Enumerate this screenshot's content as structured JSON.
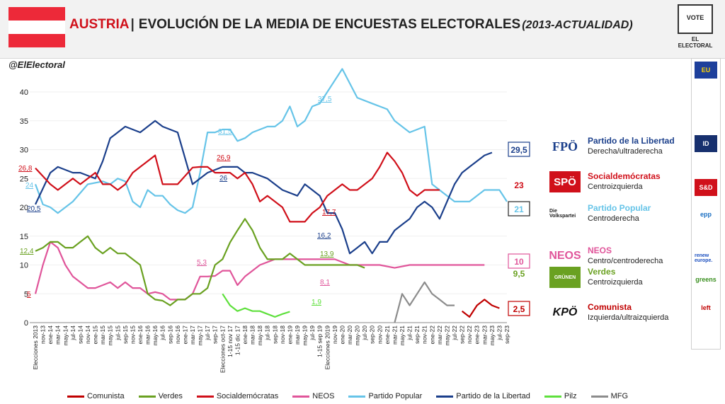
{
  "header": {
    "country": "AUSTRIA",
    "separator": "|",
    "title": "EVOLUCIÓN DE LA MEDIA DE ENCUESTAS ELECTORALES",
    "title_extra": "(2013-ACTUALIDAD)",
    "flag_colors": [
      "#ed2939",
      "#ffffff",
      "#ed2939"
    ],
    "logo_text": "VOTE",
    "logo_label": "EL ELECTORAL"
  },
  "handle": "@ElElectoral",
  "colors": {
    "Comunista": "#c00000",
    "Verdes": "#6aa121",
    "Socialdemocratas": "#d0101a",
    "NEOS": "#e0559a",
    "Partido Popular": "#66c4e8",
    "Partido de la Libertad": "#1b3f8b",
    "Pilz": "#5ee03c",
    "MFG": "#8c8c8c"
  },
  "chart_data": {
    "type": "line",
    "ylim": [
      0,
      42
    ],
    "yticks": [
      0,
      5,
      10,
      15,
      20,
      25,
      30,
      35,
      40
    ],
    "xlabels": [
      "Elecciones 2013",
      "nov-13",
      "ene-14",
      "mar-14",
      "may-14",
      "jul-14",
      "sep-14",
      "nov-14",
      "ene-15",
      "mar-15",
      "may-15",
      "jul-15",
      "sep-15",
      "nov-15",
      "ene-16",
      "mar-16",
      "may-16",
      "jul-16",
      "sep-16",
      "nov-16",
      "ene-17",
      "mar-17",
      "may-17",
      "jul-17",
      "sep-17",
      "Elecciones oct-17",
      "1-15 nov 17",
      "1-15 dic 17",
      "ene-18",
      "mar-18",
      "may-18",
      "jul-18",
      "sep-18",
      "nov-18",
      "ene-19",
      "mar-19",
      "may-19",
      "jul-19",
      "1-15 sep 19",
      "Elecciones 2019",
      "nov-19",
      "ene-20",
      "mar-20",
      "may-20",
      "jul-20",
      "sep-20",
      "nov-20",
      "ene-21",
      "mar-21",
      "may-21",
      "jul-21",
      "sep-21",
      "nov-21",
      "ene-22",
      "mar-22",
      "may-22",
      "jul-22",
      "sep-22",
      "nov-22",
      "ene-23",
      "mar-23",
      "may-23",
      "jul-23",
      "sep-23"
    ],
    "series": [
      {
        "name": "Partido Popular",
        "values": [
          24,
          20.5,
          20,
          19,
          21,
          24,
          24.5,
          24,
          25,
          24.5,
          21,
          20,
          23,
          22,
          22,
          20.5,
          19.5,
          19,
          20,
          26,
          33,
          33,
          33.5,
          33.5,
          31.5,
          32,
          33,
          34,
          34,
          35,
          37.5,
          34,
          35,
          37.5,
          38,
          44,
          39,
          38,
          37,
          35,
          33,
          34,
          24,
          22,
          21,
          21,
          21,
          23,
          23,
          21
        ]
      },
      {
        "name": "Partido de la Libertad",
        "values": [
          20.5,
          26,
          27,
          26,
          26,
          25,
          28,
          32,
          33,
          34,
          33,
          35,
          34,
          33,
          24,
          26,
          27,
          27,
          26,
          26,
          25,
          23,
          22,
          24,
          23,
          22,
          19,
          19,
          16.2,
          12,
          13,
          14,
          12,
          14,
          14,
          16,
          17,
          18,
          20,
          21,
          20,
          18,
          21,
          24,
          26,
          27,
          28,
          29,
          29.5
        ]
      },
      {
        "name": "Socialdemócratas",
        "values": [
          26.8,
          24,
          23,
          24,
          25,
          24,
          25,
          26,
          24,
          24,
          23,
          24,
          26,
          27,
          28,
          29,
          24,
          24,
          26.9,
          27,
          27,
          26,
          26,
          26,
          25,
          26,
          24,
          21,
          22,
          20,
          17.5,
          17.5,
          19,
          20,
          22,
          23,
          24,
          23,
          23,
          25,
          27,
          29.5,
          28,
          26,
          23,
          22,
          23,
          23,
          23
        ]
      },
      {
        "name": "NEOS",
        "values": [
          5,
          10,
          14,
          13,
          10,
          8,
          7,
          6,
          6,
          7,
          6,
          7,
          6,
          6,
          5,
          5.3,
          5,
          4,
          4,
          4,
          5,
          8,
          8,
          8.1,
          9,
          9,
          6.5,
          8,
          9,
          10,
          11,
          11,
          11,
          11,
          11,
          10,
          10,
          10,
          9.5,
          10,
          10,
          10,
          10,
          10,
          10
        ]
      },
      {
        "name": "Verdes",
        "values": [
          12.4,
          13,
          14,
          14,
          13,
          13,
          14,
          15,
          13,
          12,
          13,
          12,
          12,
          11,
          10,
          5,
          4,
          3.8,
          3,
          4,
          4,
          5,
          5,
          6,
          10,
          11,
          13.9,
          16,
          18,
          16,
          13,
          11,
          11,
          11,
          12,
          11,
          10,
          10,
          10,
          10,
          10,
          10,
          10,
          10,
          9.5
        ]
      },
      {
        "name": "Pilz",
        "values": [
          5,
          3,
          2,
          2.5,
          2,
          2,
          1.5,
          1,
          1.5,
          1.9
        ]
      },
      {
        "name": "MFG",
        "values": [
          0,
          5,
          3,
          5,
          7,
          5,
          4,
          3,
          3
        ]
      },
      {
        "name": "Comunista",
        "values": [
          2,
          1,
          3,
          4,
          3,
          2.5
        ]
      }
    ],
    "annotations": [
      "26,8",
      "24",
      "20,5",
      "12,4",
      "5",
      "31,5",
      "26,9",
      "26",
      "5,3",
      "37,5",
      "16,2",
      "17,7",
      "13,9",
      "8,1",
      "1,9"
    ],
    "end_labels": {
      "Partido de la Libertad": "29,5",
      "Socialdemócratas": "23",
      "Partido Popular": "21",
      "NEOS": "10",
      "Verdes": "9,5",
      "Comunista": "2,5"
    },
    "legend": [
      "Comunista",
      "Verdes",
      "Socialdemócratas",
      "NEOS",
      "Partido Popular",
      "Partido de la Libertad",
      "Pilz",
      "MFG"
    ]
  },
  "parties": [
    {
      "logo": "FPÖ",
      "name": "Partido de la Libertad",
      "sub": "Derecha/ultraderecha",
      "color": "#1b3f8b"
    },
    {
      "logo": "SPÖ",
      "name": "Socialdemócratas",
      "sub": "Centroizquierda",
      "color": "#d0101a"
    },
    {
      "logo": "Die Volkspartei",
      "name": "Partido Popular",
      "sub": "Centroderecha",
      "color": "#66c4e8"
    },
    {
      "logo": "NEOS",
      "name": "NEOS",
      "sub": "Centro/centroderecha",
      "color": "#e0559a"
    },
    {
      "logo": "GRÜNEN",
      "name": "Verdes",
      "sub": "Centroizquierda",
      "color": "#6aa121"
    },
    {
      "logo": "KPÖ",
      "name": "Comunista",
      "sub": "Izquierda/ultraizquierda",
      "color": "#c00000"
    }
  ],
  "sidebar": [
    "EU",
    "ID",
    "S&D",
    "epp",
    "renew europe.",
    "greens",
    "left"
  ]
}
